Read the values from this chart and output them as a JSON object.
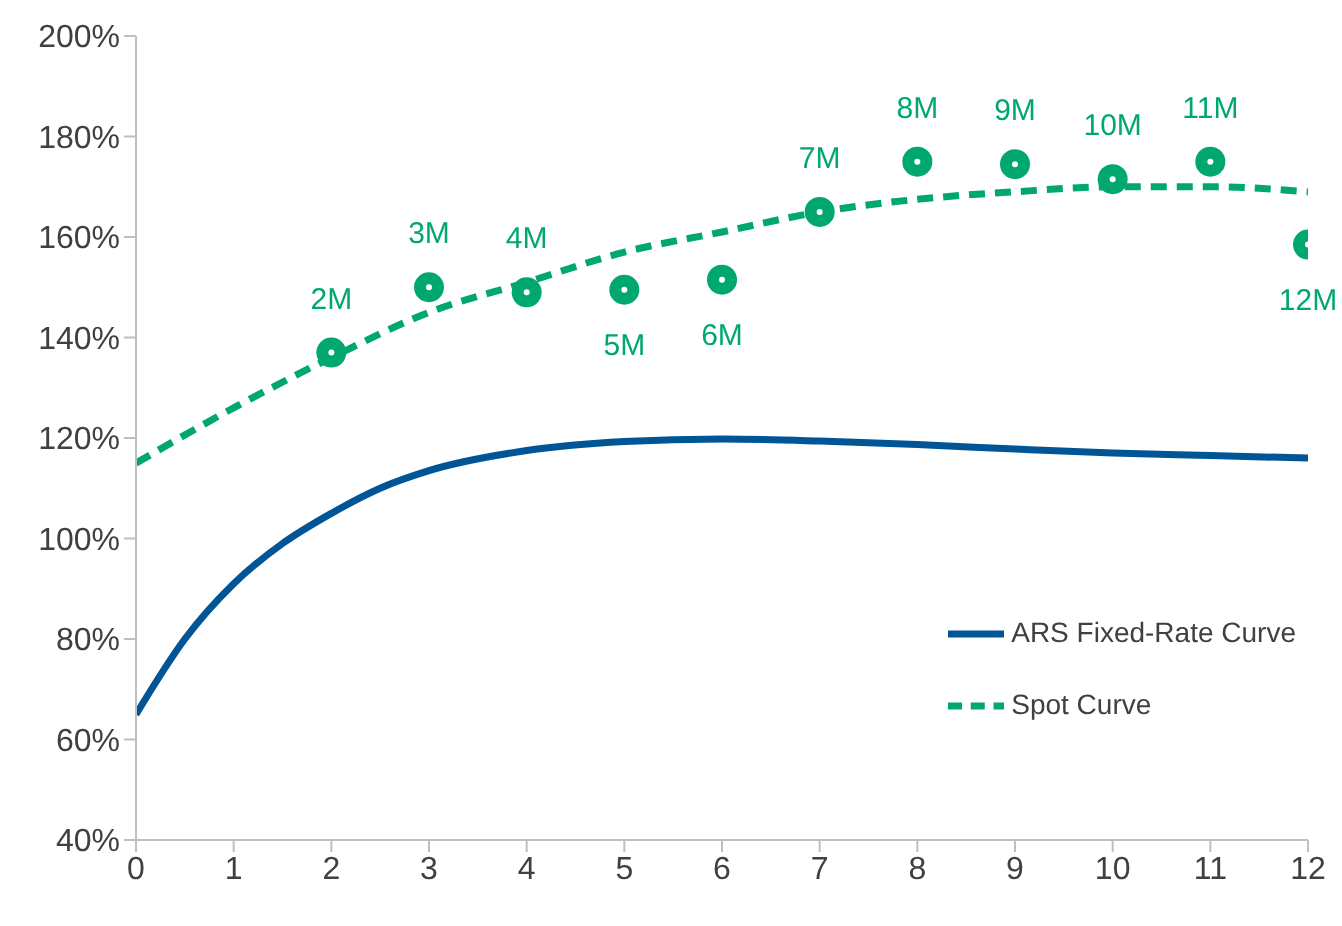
{
  "chart_data": {
    "type": "line",
    "xlim": [
      0,
      12
    ],
    "xticks": [
      0,
      1,
      2,
      3,
      4,
      5,
      6,
      7,
      8,
      9,
      10,
      11,
      12
    ],
    "ylim": [
      40,
      200
    ],
    "yticks": [
      {
        "value": 40,
        "label": "40%"
      },
      {
        "value": 60,
        "label": "60%"
      },
      {
        "value": 80,
        "label": "80%"
      },
      {
        "value": 100,
        "label": "100%"
      },
      {
        "value": 120,
        "label": "120%"
      },
      {
        "value": 140,
        "label": "140%"
      },
      {
        "value": 160,
        "label": "160%"
      },
      {
        "value": 180,
        "label": "180%"
      },
      {
        "value": 200,
        "label": "200%"
      }
    ],
    "grid": false,
    "legend": "bottom right",
    "series": [
      {
        "name": "ARS Fixed-Rate Curve",
        "color": "#005596",
        "line_style": "solid",
        "marker": "none",
        "x": [
          0,
          0.5,
          1,
          1.5,
          2,
          2.5,
          3,
          4,
          5,
          6,
          7,
          8,
          9,
          10,
          11,
          12
        ],
        "values": [
          65,
          80,
          91,
          99,
          105,
          110,
          113.5,
          117.5,
          119.3,
          119.8,
          119.4,
          118.7,
          117.8,
          117,
          116.5,
          116
        ]
      },
      {
        "name": "Spot Curve",
        "color": "#00a870",
        "line_style": "dashed",
        "marker": "none",
        "x": [
          0,
          1,
          2,
          3,
          4,
          5,
          6,
          7,
          8,
          9,
          10,
          11,
          12
        ],
        "values": [
          115,
          126,
          136,
          145,
          151,
          157,
          161,
          165,
          167.5,
          169,
          170,
          170,
          169
        ]
      },
      {
        "type": "scatter",
        "color": "#00a870",
        "marker": "circle",
        "x": [
          2,
          3,
          4,
          5,
          6,
          7,
          8,
          9,
          10,
          11,
          12
        ],
        "values": [
          137,
          150,
          149,
          149.5,
          151.5,
          165,
          175,
          174.5,
          171.5,
          175,
          158.5
        ]
      }
    ],
    "annotations": [
      {
        "text": "2M",
        "x": 2,
        "y": 137
      },
      {
        "text": "3M",
        "x": 3,
        "y": 150
      },
      {
        "text": "4M",
        "x": 4,
        "y": 149
      },
      {
        "text": "5M",
        "x": 5,
        "y": 149.5
      },
      {
        "text": "6M",
        "x": 6,
        "y": 151.5
      },
      {
        "text": "7M",
        "x": 7,
        "y": 165
      },
      {
        "text": "8M",
        "x": 8,
        "y": 175
      },
      {
        "text": "9M",
        "x": 9,
        "y": 174.5
      },
      {
        "text": "10M",
        "x": 10,
        "y": 171.5
      },
      {
        "text": "11M",
        "x": 11,
        "y": 175
      },
      {
        "text": "12M",
        "x": 12,
        "y": 158.5
      }
    ]
  }
}
